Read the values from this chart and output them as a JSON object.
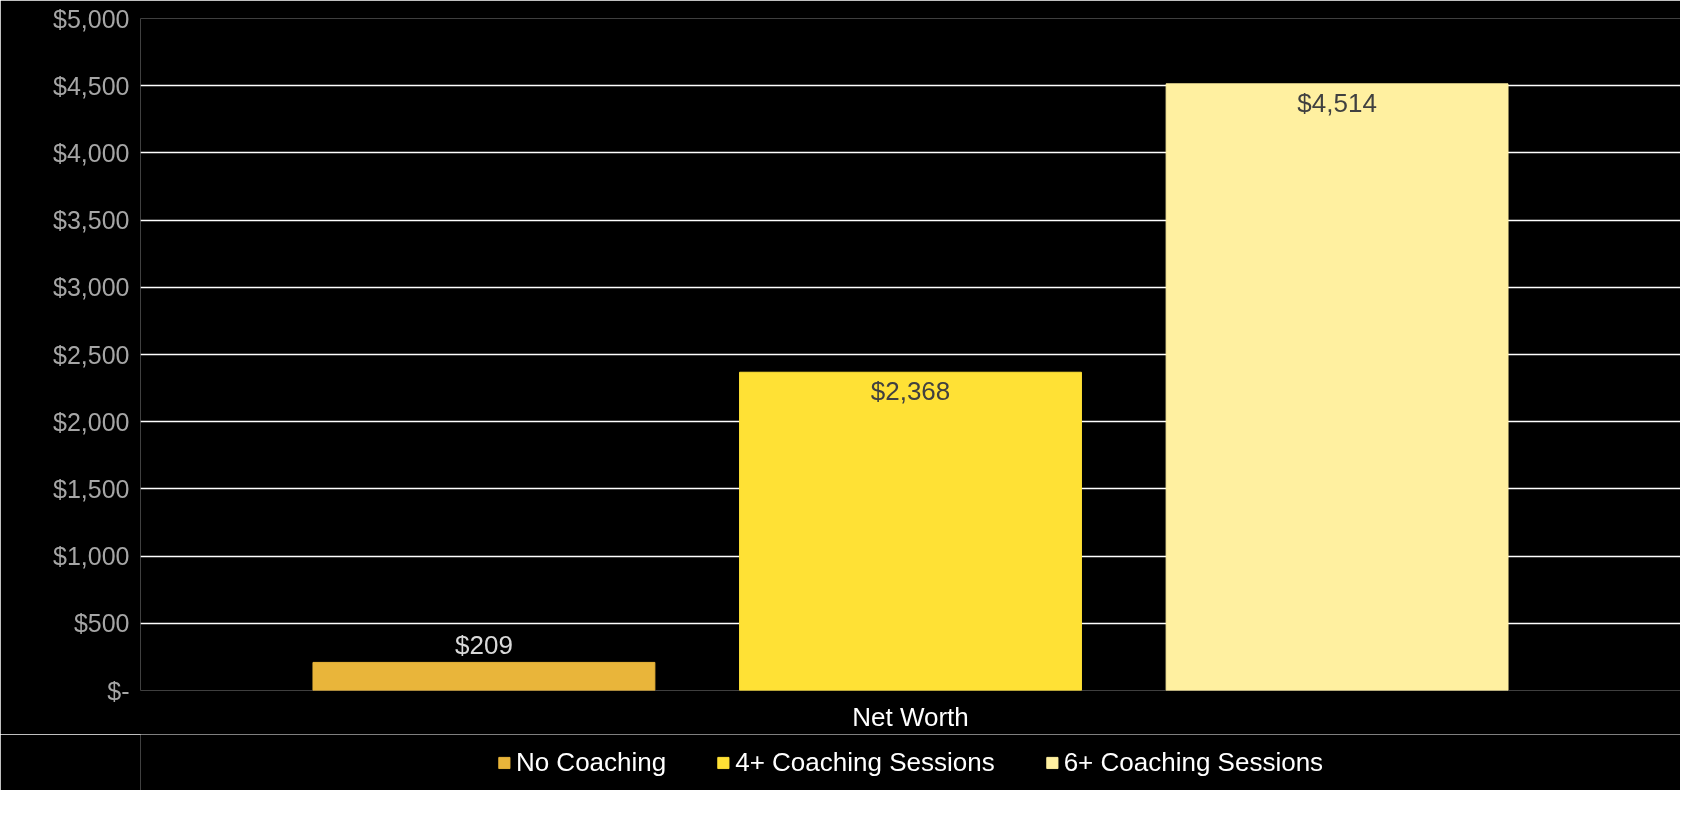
{
  "chart_data": {
    "type": "bar",
    "categories": [
      "Net Worth"
    ],
    "series": [
      {
        "name": "No Coaching",
        "color": "#e9b53a",
        "values": [
          209
        ],
        "value_labels": [
          "$209"
        ]
      },
      {
        "name": "4+ Coaching Sessions",
        "color": "#ffe135",
        "values": [
          2368
        ],
        "value_labels": [
          "$2,368"
        ]
      },
      {
        "name": "6+ Coaching Sessions",
        "color": "#fff0a0",
        "values": [
          4514
        ],
        "value_labels": [
          "$4,514"
        ]
      }
    ],
    "ylim": [
      0,
      5000
    ],
    "yticks": [
      {
        "value": 0,
        "label": "$-"
      },
      {
        "value": 500,
        "label": "$500"
      },
      {
        "value": 1000,
        "label": "$1,000"
      },
      {
        "value": 1500,
        "label": "$1,500"
      },
      {
        "value": 2000,
        "label": "$2,000"
      },
      {
        "value": 2500,
        "label": "$2,500"
      },
      {
        "value": 3000,
        "label": "$3,000"
      },
      {
        "value": 3500,
        "label": "$3,500"
      },
      {
        "value": 4000,
        "label": "$4,000"
      },
      {
        "value": 4500,
        "label": "$4,500"
      },
      {
        "value": 5000,
        "label": "$5,000"
      }
    ],
    "grid": "y",
    "legend": "bottom"
  }
}
